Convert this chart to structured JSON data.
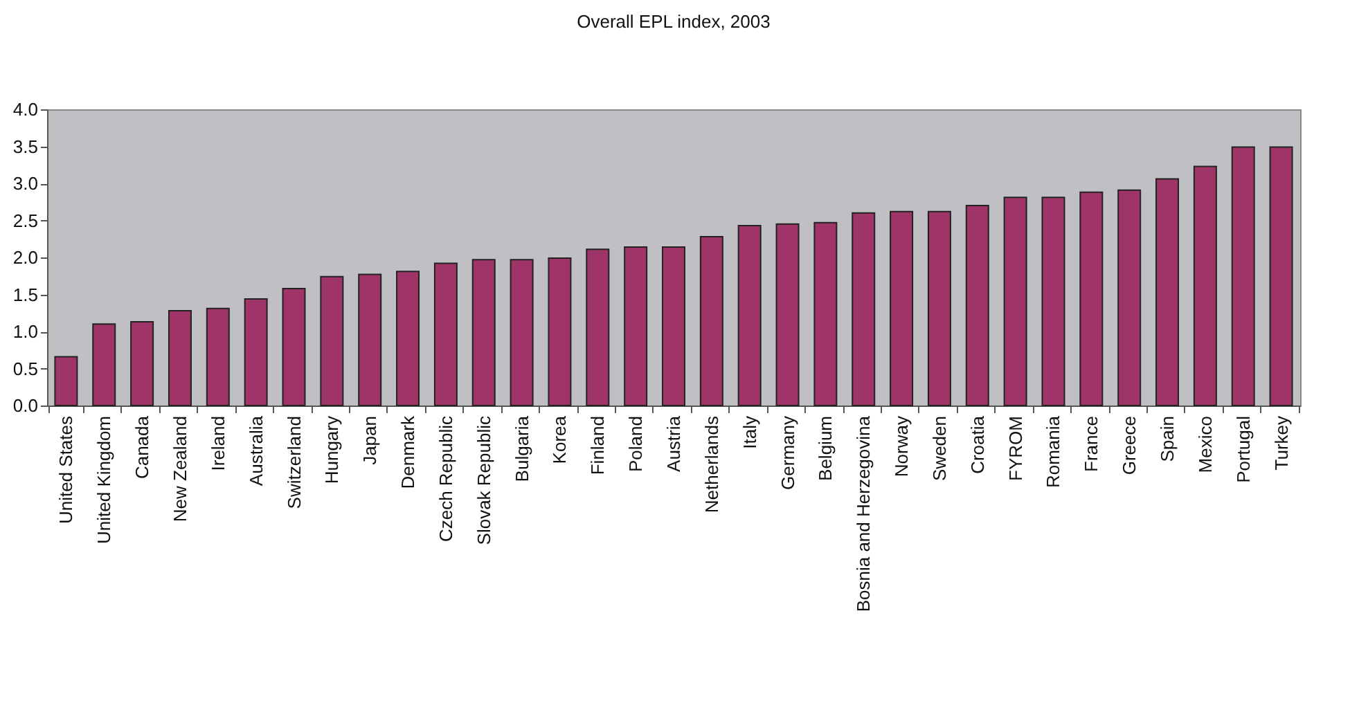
{
  "chart_data": {
    "type": "bar",
    "title": "Overall EPL index, 2003",
    "categories": [
      "United States",
      "United Kingdom",
      "Canada",
      "New Zealand",
      "Ireland",
      "Australia",
      "Switzerland",
      "Hungary",
      "Japan",
      "Denmark",
      "Czech Republic",
      "Slovak Republic",
      "Bulgaria",
      "Korea",
      "Finland",
      "Poland",
      "Austria",
      "Netherlands",
      "Italy",
      "Germany",
      "Belgium",
      "Bosnia and Herzegovina",
      "Norway",
      "Sweden",
      "Croatia",
      "FYROM",
      "Romania",
      "France",
      "Greece",
      "Spain",
      "Mexico",
      "Portugal",
      "Turkey"
    ],
    "values": [
      0.66,
      1.1,
      1.13,
      1.28,
      1.31,
      1.44,
      1.58,
      1.74,
      1.77,
      1.81,
      1.92,
      1.97,
      1.97,
      1.99,
      2.11,
      2.14,
      2.14,
      2.28,
      2.43,
      2.45,
      2.47,
      2.6,
      2.62,
      2.62,
      2.7,
      2.81,
      2.81,
      2.88,
      2.91,
      3.06,
      3.23,
      3.49,
      3.49
    ],
    "color": "#9e3468",
    "ylim": [
      0,
      4
    ],
    "yticks": [
      {
        "value": 0,
        "label": "0.0"
      },
      {
        "value": 0.5,
        "label": "0.5"
      },
      {
        "value": 1,
        "label": "1.0"
      },
      {
        "value": 1.5,
        "label": "1.5"
      },
      {
        "value": 2,
        "label": "2.0"
      },
      {
        "value": 2.5,
        "label": "2.5"
      },
      {
        "value": 3,
        "label": "3.0"
      },
      {
        "value": 3.5,
        "label": "3.5"
      },
      {
        "value": 4,
        "label": "4.0"
      }
    ],
    "grid": false
  }
}
